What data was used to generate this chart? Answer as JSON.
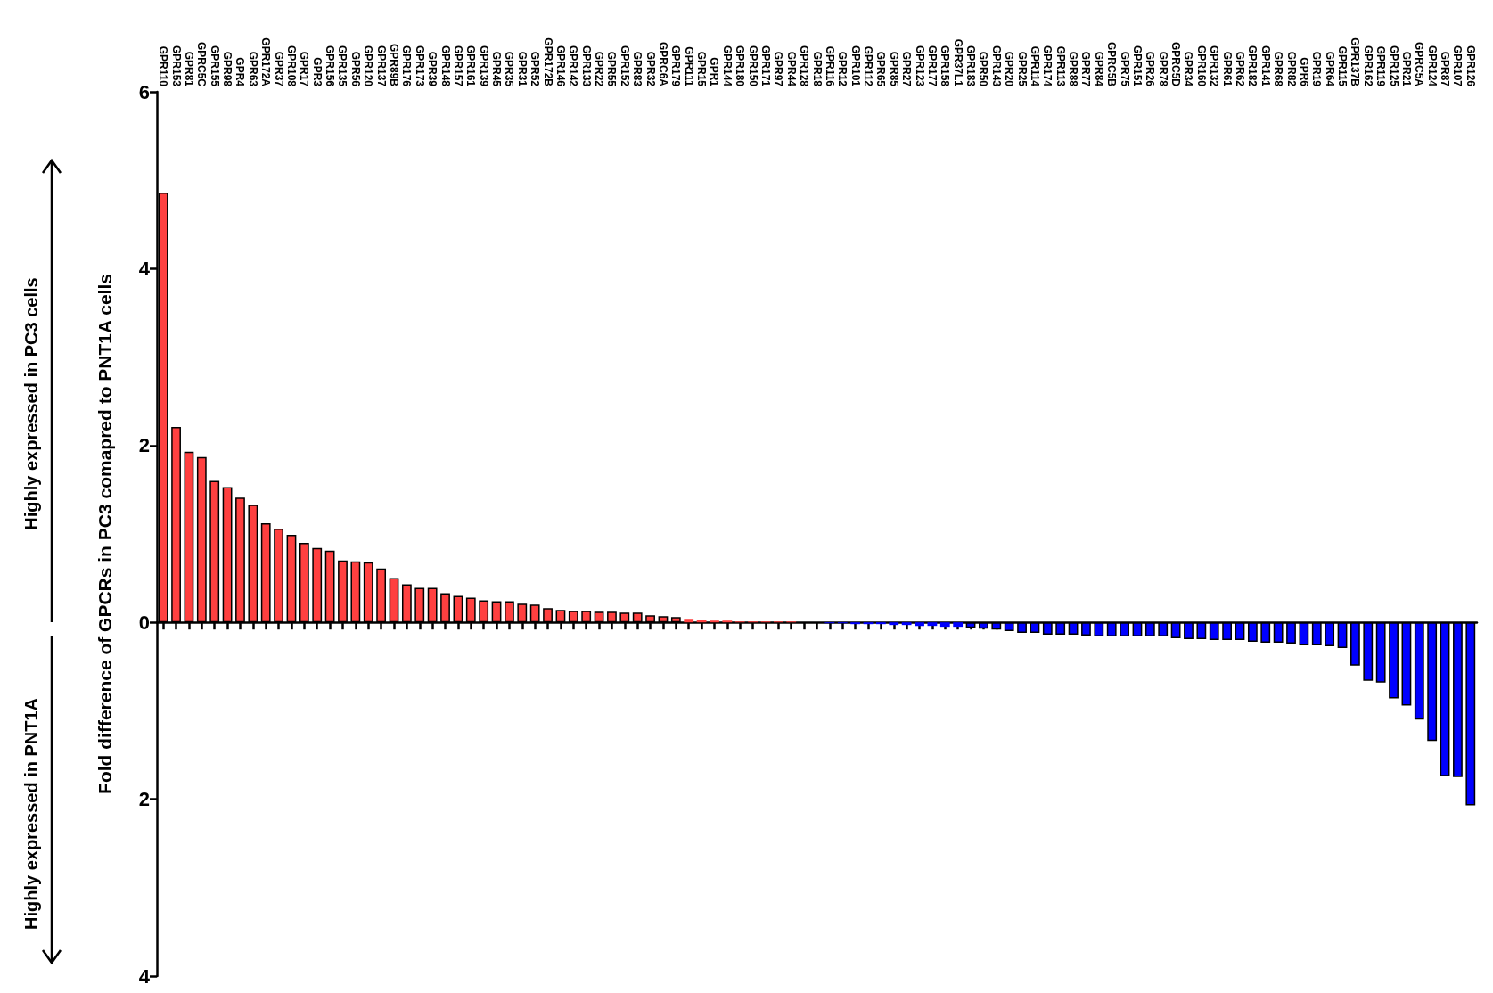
{
  "chart_data": {
    "type": "bar",
    "ylabel": "Fold difference of GPCRs in PC3 comapred to PNT1A cells",
    "annotations": [
      "Highly expressed in PC3 cells",
      "Highly expressed in PNT1A"
    ],
    "categories": [
      "GPR110",
      "GPR153",
      "GPR81",
      "GPRC5C",
      "GPR155",
      "GPR98",
      "GPR4",
      "GPR63",
      "GPR172A",
      "GPR37",
      "GPR108",
      "GPR17",
      "GPR3",
      "GPR156",
      "GPR135",
      "GPR56",
      "GPR120",
      "GPR137",
      "GPR89B",
      "GPR176",
      "GPR173",
      "GPR39",
      "GPR148",
      "GPR157",
      "GPR161",
      "GPR139",
      "GPR45",
      "GPR35",
      "GPR31",
      "GPR52",
      "GPR172B",
      "GPR146",
      "GPR142",
      "GPR133",
      "GPR22",
      "GPR55",
      "GPR152",
      "GPR83",
      "GPR32",
      "GPRC6A",
      "GPR179",
      "GPR111",
      "GPR15",
      "GPR1",
      "GPR144",
      "GPR180",
      "GPR150",
      "GPR171",
      "GPR97",
      "GPR44",
      "GPR128",
      "GPR18",
      "GPR116",
      "GPR12",
      "GPR101",
      "GPR112",
      "GPR65",
      "GPR85",
      "GPR27",
      "GPR123",
      "GPR177",
      "GPR158",
      "GPR37L1",
      "GPR183",
      "GPR50",
      "GPR143",
      "GPR20",
      "GPR25",
      "GPR114",
      "GPR174",
      "GPR113",
      "GPR88",
      "GPR77",
      "GPR84",
      "GPRC5B",
      "GPR75",
      "GPR151",
      "GPR26",
      "GPR78",
      "GPRC5D",
      "GPR34",
      "GPR160",
      "GPR132",
      "GPR61",
      "GPR62",
      "GPR182",
      "GPR141",
      "GPR68",
      "GPR82",
      "GPR6",
      "GPR19",
      "GPR64",
      "GPR115",
      "GPR137B",
      "GPR162",
      "GPR119",
      "GPR125",
      "GPR21",
      "GPRC5A",
      "GPR124",
      "GPR87",
      "GPR107",
      "GPR126"
    ],
    "values": [
      4.86,
      2.21,
      1.93,
      1.87,
      1.6,
      1.53,
      1.41,
      1.33,
      1.12,
      1.06,
      0.99,
      0.9,
      0.84,
      0.81,
      0.7,
      0.69,
      0.68,
      0.61,
      0.5,
      0.43,
      0.39,
      0.39,
      0.33,
      0.3,
      0.28,
      0.25,
      0.24,
      0.24,
      0.21,
      0.2,
      0.16,
      0.14,
      0.13,
      0.13,
      0.12,
      0.12,
      0.11,
      0.11,
      0.08,
      0.07,
      0.06,
      0.04,
      0.03,
      0.02,
      0.02,
      0.01,
      0.01,
      0.01,
      0.01,
      0.01,
      0,
      0,
      -0.01,
      -0.01,
      -0.02,
      -0.02,
      -0.02,
      -0.03,
      -0.03,
      -0.04,
      -0.04,
      -0.05,
      -0.05,
      -0.06,
      -0.07,
      -0.08,
      -0.1,
      -0.12,
      -0.12,
      -0.14,
      -0.14,
      -0.14,
      -0.15,
      -0.16,
      -0.16,
      -0.16,
      -0.16,
      -0.16,
      -0.16,
      -0.18,
      -0.19,
      -0.19,
      -0.2,
      -0.2,
      -0.2,
      -0.22,
      -0.23,
      -0.23,
      -0.24,
      -0.26,
      -0.26,
      -0.27,
      -0.29,
      -0.49,
      -0.66,
      -0.68,
      -0.86,
      -0.94,
      -1.1,
      -1.34,
      -1.74,
      -1.75,
      -2.07
    ],
    "colors": [
      "#ff4040",
      "#ff4040",
      "#ff4040",
      "#ff4040",
      "#ff4040",
      "#ff4040",
      "#ff4040",
      "#ff4040",
      "#ff4040",
      "#ff4040",
      "#ff4040",
      "#ff4040",
      "#ff4040",
      "#ff4040",
      "#ff4040",
      "#ff4040",
      "#ff4040",
      "#ff4040",
      "#ff4040",
      "#ff4040",
      "#ff4040",
      "#ff4040",
      "#ff4040",
      "#ff4040",
      "#ff4040",
      "#ff4040",
      "#ff4040",
      "#ff4040",
      "#ff4040",
      "#ff4040",
      "#ff4040",
      "#ff4040",
      "#ff4040",
      "#ff4040",
      "#ff4040",
      "#ff4040",
      "#ff4040",
      "#ff4040",
      "#ff4040",
      "#ff4040",
      "#ff4040",
      "#ff4040",
      "#ff4040",
      "#ff4040",
      "#ff4040",
      "#ff4040",
      "#ff4040",
      "#ff4040",
      "#ff4040",
      "#ff4040",
      "#ff4040",
      "#ff4040",
      "#0000ff",
      "#0000ff",
      "#0000ff",
      "#0000ff",
      "#0000ff",
      "#0000ff",
      "#0000ff",
      "#0000ff",
      "#0000ff",
      "#0000ff",
      "#0000ff",
      "#0000ff",
      "#0000ff",
      "#0000ff",
      "#0000ff",
      "#0000ff",
      "#0000ff",
      "#0000ff",
      "#0000ff",
      "#0000ff",
      "#0000ff",
      "#0000ff",
      "#0000ff",
      "#0000ff",
      "#0000ff",
      "#0000ff",
      "#0000ff",
      "#0000ff",
      "#0000ff",
      "#0000ff",
      "#0000ff",
      "#0000ff",
      "#0000ff",
      "#0000ff",
      "#0000ff",
      "#0000ff",
      "#0000ff",
      "#0000ff",
      "#0000ff",
      "#0000ff",
      "#0000ff",
      "#0000ff",
      "#0000ff",
      "#0000ff",
      "#0000ff",
      "#0000ff",
      "#0000ff",
      "#0000ff",
      "#0000ff",
      "#0000ff",
      "#0000ff"
    ],
    "ylim": [
      -4,
      6
    ],
    "yticks": [
      {
        "value": -4,
        "label": "4"
      },
      {
        "value": -2,
        "label": "2"
      },
      0,
      2,
      4,
      6
    ]
  }
}
